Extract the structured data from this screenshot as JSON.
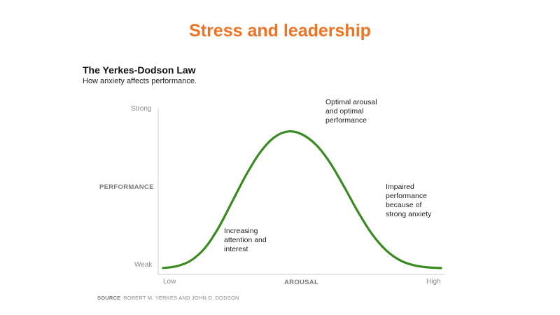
{
  "slide": {
    "title": "Stress and leadership"
  },
  "chart_data": {
    "type": "line",
    "title": "The Yerkes-Dodson Law",
    "subtitle": "How anxiety affects performance.",
    "xlabel": "AROUSAL",
    "ylabel": "PERFORMANCE",
    "x_ticks": [
      "Low",
      "High"
    ],
    "y_ticks": [
      "Weak",
      "Strong"
    ],
    "xlim": [
      0,
      1
    ],
    "ylim": [
      0,
      1
    ],
    "grid": false,
    "line_color": "#3a8a22",
    "series": [
      {
        "x": [
          0,
          0.05,
          0.1,
          0.15,
          0.2,
          0.25,
          0.3,
          0.35,
          0.4,
          0.45,
          0.5,
          0.55,
          0.6,
          0.65,
          0.7,
          0.75,
          0.8,
          0.85,
          0.9,
          0.95,
          1
        ],
        "values": [
          0.005,
          0.018,
          0.056,
          0.14,
          0.28,
          0.46,
          0.64,
          0.79,
          0.89,
          0.93,
          0.91,
          0.84,
          0.72,
          0.56,
          0.39,
          0.24,
          0.13,
          0.06,
          0.025,
          0.01,
          0.005
        ]
      }
    ],
    "annotations": [
      {
        "text": [
          "Increasing",
          "attention and",
          "interest"
        ]
      },
      {
        "text": [
          "Optimal arousal",
          "and optimal",
          "performance"
        ]
      },
      {
        "text": [
          "Impaired",
          "performance",
          "because of",
          "strong anxiety"
        ]
      }
    ]
  },
  "source": {
    "label": "SOURCE",
    "text": "ROBERT M. YERKES AND JOHN D. DODSON"
  }
}
